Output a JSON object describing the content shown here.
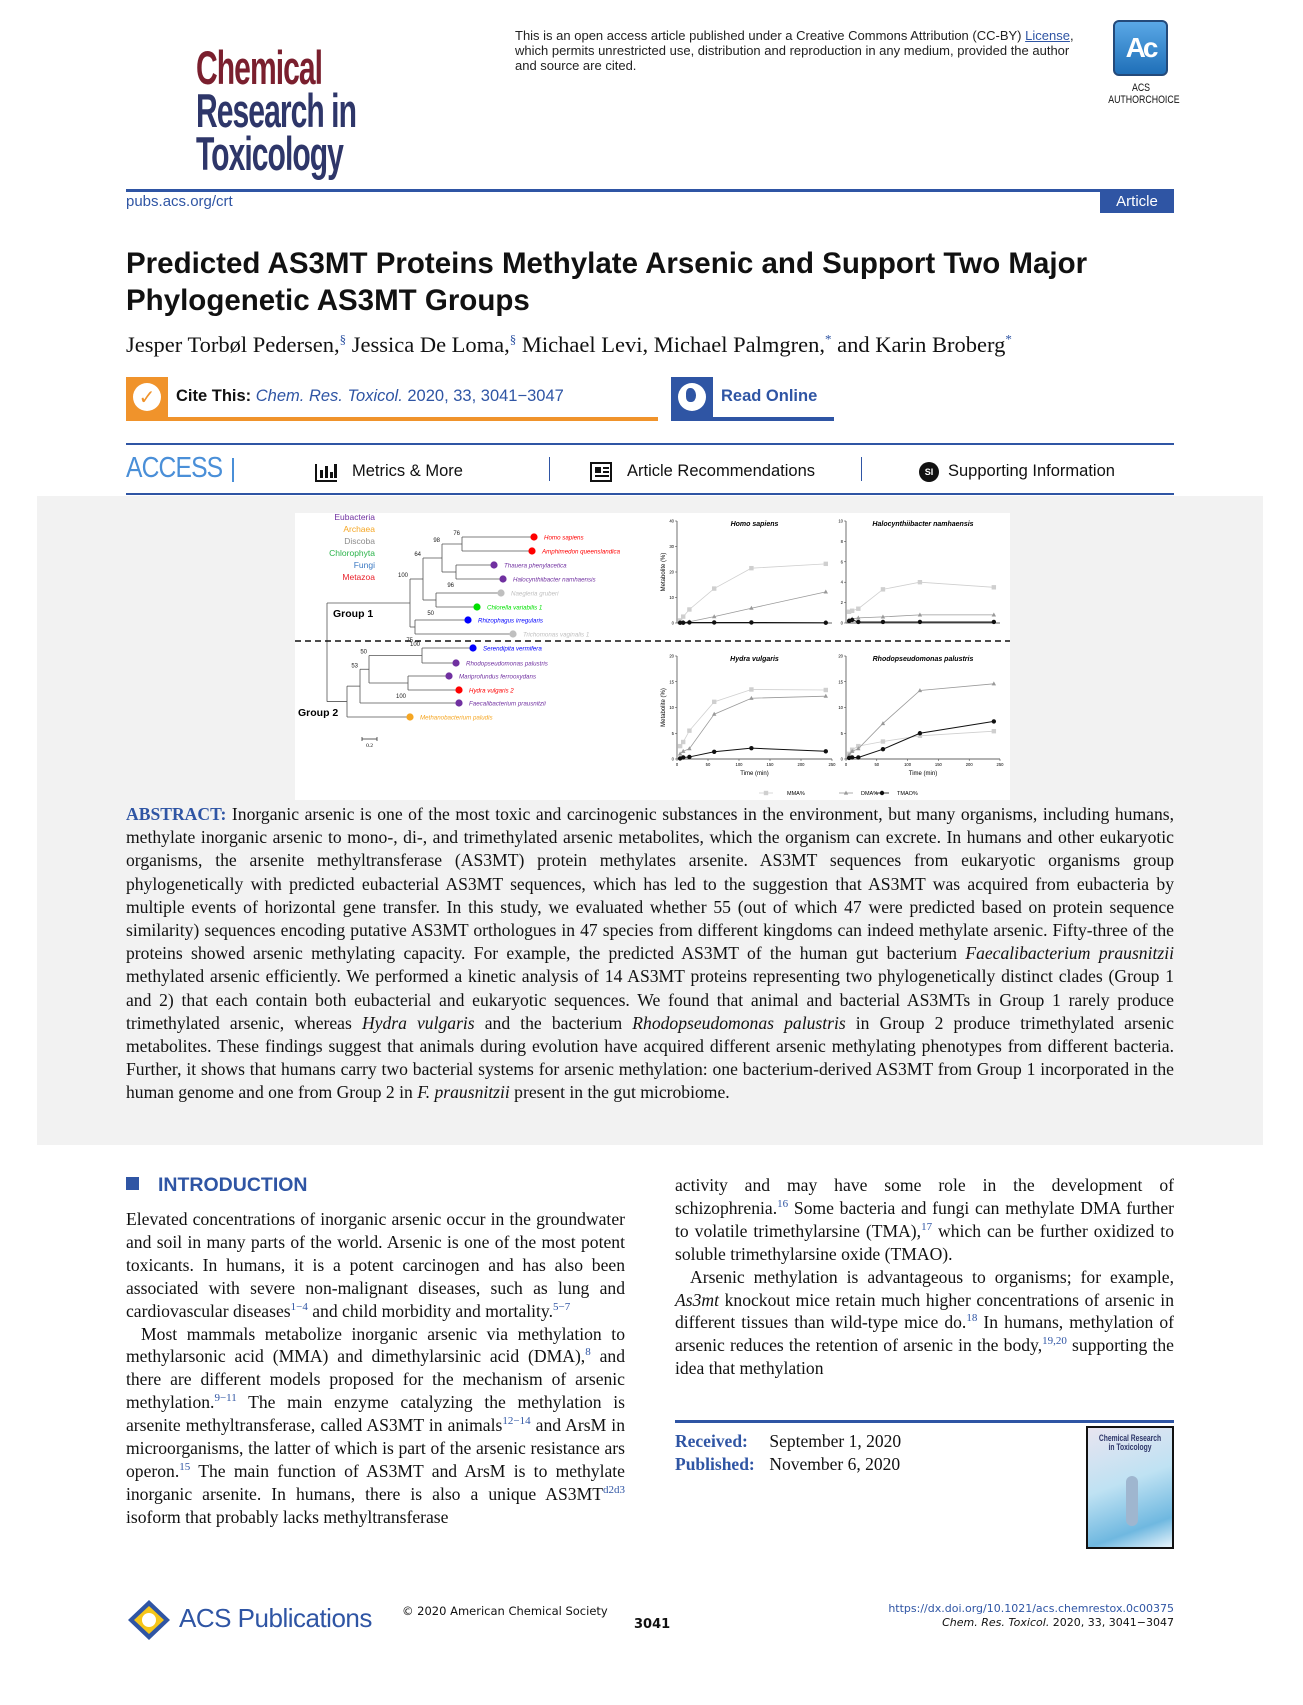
{
  "journal_logo": {
    "line1": "Chemical",
    "line2": "Research in",
    "line3": "Toxicology",
    "colors": {
      "line1": "#7a1f2e",
      "rest": "#2e3669"
    }
  },
  "license": {
    "pre": "This is an open access article published under a Creative Commons Attribution (CC-BY) ",
    "link": "License",
    "post": ", which permits unrestricted use, distribution and reproduction in any medium, provided the author and source are cited."
  },
  "authorchoice": {
    "badge": "Ac",
    "label": "ACS AUTHORCHOICE"
  },
  "header": {
    "url": "pubs.acs.org/crt",
    "type_badge": "Article"
  },
  "title": "Predicted AS3MT Proteins Methylate Arsenic and Support Two Major Phylogenetic AS3MT Groups",
  "authors": [
    {
      "name": "Jesper Torbøl Pedersen,",
      "mark": "§"
    },
    {
      "name": " Jessica De Loma,",
      "mark": "§"
    },
    {
      "name": " Michael Levi, Michael Palmgren,",
      "mark": "*"
    },
    {
      "name": " and Karin Broberg",
      "mark": "*"
    }
  ],
  "cite": {
    "label": "Cite This:",
    "journal": "Chem. Res. Toxicol.",
    "ref": " 2020, 33, 3041−3047",
    "icon": "checkmark-icon"
  },
  "read_online": {
    "label": "Read Online",
    "icon": "globe-icon"
  },
  "access_bar": {
    "access": "ACCESS",
    "metrics": "Metrics & More",
    "recommendations": "Article Recommendations",
    "supporting": "Supporting Information",
    "si_badge": "SI"
  },
  "figure": {
    "tree": {
      "legend": [
        {
          "label": "Eubacteria",
          "color": "#7030a0"
        },
        {
          "label": "Archaea",
          "color": "#f5a623"
        },
        {
          "label": "Discoba",
          "color": "#8c8c8c"
        },
        {
          "label": "Chlorophyta",
          "color": "#2bb34a"
        },
        {
          "label": "Fungi",
          "color": "#3a78c2"
        },
        {
          "label": "Metazoa",
          "color": "#e8202a"
        }
      ],
      "leaves": [
        {
          "name": "Homo sapiens",
          "color": "#ff0000"
        },
        {
          "name": "Amphimedon queenslandica",
          "color": "#ff0000"
        },
        {
          "name": "Thauera phenylacetica",
          "color": "#7030a0"
        },
        {
          "name": "Halocynthiibacter namhaensis",
          "color": "#7030a0"
        },
        {
          "name": "Naegleria gruberi",
          "color": "#bfbfbf"
        },
        {
          "name": "Chlorella variabilis 1",
          "color": "#00e000"
        },
        {
          "name": "Rhizophagus irregularis",
          "color": "#0000ff"
        },
        {
          "name": "Trichomonas vaginalis 1",
          "color": "#bfbfbf"
        },
        {
          "name": "Serendipita vermifera",
          "color": "#0000ff"
        },
        {
          "name": "Rhodopseudomonas palustris",
          "color": "#7030a0"
        },
        {
          "name": "Mariprofundus ferrooxydans",
          "color": "#7030a0"
        },
        {
          "name": "Hydra vulgaris 2",
          "color": "#ff0000"
        },
        {
          "name": "Faecalibacterium prausnitzii",
          "color": "#7030a0"
        },
        {
          "name": "Methanobacterium paludis",
          "color": "#f5a623"
        }
      ],
      "bootstrap": [
        "76",
        "96",
        "98",
        "50",
        "64",
        "75",
        "100",
        "100",
        "100",
        "50",
        "53"
      ],
      "groups": [
        "Group 1",
        "Group 2"
      ],
      "scale_label": "0.2"
    },
    "legend": [
      "MMA%",
      "DMA%",
      "TMAO%"
    ]
  },
  "chart_data": [
    {
      "type": "line",
      "title": "Homo sapiens",
      "xlabel": "",
      "ylabel": "Metabolite (%)",
      "xlim": [
        0,
        250
      ],
      "ylim": [
        0,
        40
      ],
      "xticks": [],
      "yticks": [
        0,
        10,
        20,
        30,
        40
      ],
      "x": [
        5,
        10,
        20,
        60,
        120,
        240
      ],
      "series": [
        {
          "name": "MMA%",
          "values": [
            1.0,
            2.5,
            5.3,
            13.5,
            21.5,
            23.2
          ]
        },
        {
          "name": "DMA%",
          "values": [
            0.1,
            0.3,
            0.5,
            2.5,
            5.8,
            12.2
          ]
        },
        {
          "name": "TMAO%",
          "values": [
            0.1,
            0.1,
            0.2,
            0.2,
            0.2,
            0.1
          ]
        }
      ]
    },
    {
      "type": "line",
      "title": "Halocynthiibacter namhaensis",
      "xlabel": "",
      "ylabel": "",
      "xlim": [
        0,
        250
      ],
      "ylim": [
        0,
        10
      ],
      "xticks": [],
      "yticks": [
        0,
        2,
        4,
        6,
        8,
        10
      ],
      "x": [
        5,
        10,
        20,
        60,
        120,
        240
      ],
      "series": [
        {
          "name": "MMA%",
          "values": [
            1.1,
            1.2,
            1.4,
            3.3,
            4.0,
            3.5
          ]
        },
        {
          "name": "DMA%",
          "values": [
            0.3,
            0.4,
            0.5,
            0.6,
            0.8,
            0.8
          ]
        },
        {
          "name": "TMAO%",
          "values": [
            0.2,
            0.3,
            0.1,
            0.1,
            0.1,
            0.1
          ]
        }
      ]
    },
    {
      "type": "line",
      "title": "Hydra vulgaris",
      "xlabel": "Time (min)",
      "ylabel": "Metabolite (%)",
      "xlim": [
        0,
        250
      ],
      "ylim": [
        0,
        20
      ],
      "xticks": [
        0,
        50,
        100,
        150,
        200,
        250
      ],
      "yticks": [
        0,
        5,
        10,
        15,
        20
      ],
      "x": [
        5,
        10,
        20,
        60,
        120,
        240
      ],
      "series": [
        {
          "name": "MMA%",
          "values": [
            2.5,
            3.3,
            5.5,
            11.1,
            13.5,
            13.4
          ]
        },
        {
          "name": "DMA%",
          "values": [
            1.0,
            1.5,
            2.0,
            8.7,
            11.8,
            12.2
          ]
        },
        {
          "name": "TMAO%",
          "values": [
            0.1,
            0.3,
            0.4,
            1.4,
            2.1,
            1.5
          ]
        }
      ]
    },
    {
      "type": "line",
      "title": "Rhodopseudomonas palustris",
      "xlabel": "Time (min)",
      "ylabel": "",
      "xlim": [
        0,
        250
      ],
      "ylim": [
        0,
        20
      ],
      "xticks": [
        0,
        50,
        100,
        150,
        200,
        250
      ],
      "yticks": [
        0,
        5,
        10,
        15,
        20
      ],
      "x": [
        5,
        10,
        20,
        60,
        120,
        240
      ],
      "series": [
        {
          "name": "MMA%",
          "values": [
            1.0,
            1.8,
            2.5,
            3.4,
            4.5,
            5.4
          ]
        },
        {
          "name": "DMA%",
          "values": [
            0.8,
            1.5,
            2.0,
            6.9,
            13.3,
            14.6
          ]
        },
        {
          "name": "TMAO%",
          "values": [
            0.2,
            0.3,
            0.3,
            1.9,
            5.0,
            7.3
          ]
        }
      ]
    }
  ],
  "abstract": {
    "label": "ABSTRACT:",
    "segments": [
      {
        "t": " Inorganic arsenic is one of the most toxic and carcinogenic substances in the environment, but many organisms, including humans, methylate inorganic arsenic to mono-, di-, and trimethylated arsenic metabolites, which the organism can excrete. In humans and other eukaryotic organisms, the arsenite methyltransferase (AS3MT) protein methylates arsenite. AS3MT sequences from eukaryotic organisms group phylogenetically with predicted eubacterial AS3MT sequences, which has led to the suggestion that AS3MT was acquired from eubacteria by multiple events of horizontal gene transfer. In this study, we evaluated whether 55 (out of which 47 were predicted based on protein sequence similarity) sequences encoding putative AS3MT orthologues in 47 species from different kingdoms can indeed methylate arsenic. Fifty-three of the proteins showed arsenic methylating capacity. For example, the predicted AS3MT of the human gut bacterium "
      },
      {
        "t": "Faecalibacterium prausnitzii",
        "s": "i"
      },
      {
        "t": " methylated arsenic efficiently. We performed a kinetic analysis of 14 AS3MT proteins representing two phylogenetically distinct clades (Group 1 and 2) that each contain both eubacterial and eukaryotic sequences. We found that animal and bacterial AS3MTs in Group 1 rarely produce trimethylated arsenic, whereas "
      },
      {
        "t": "Hydra vulgaris",
        "s": "i"
      },
      {
        "t": " and the bacterium "
      },
      {
        "t": "Rhodopseudomonas palustris",
        "s": "i"
      },
      {
        "t": " in Group 2 produce trimethylated arsenic metabolites. These findings suggest that animals during evolution have acquired different arsenic methylating phenotypes from different bacteria. Further, it shows that humans carry two bacterial systems for arsenic methylation: one bacterium-derived AS3MT from Group 1 incorporated in the human genome and one from Group 2 in "
      },
      {
        "t": "F. prausnitzii",
        "s": "i"
      },
      {
        "t": " present in the gut microbiome."
      }
    ]
  },
  "introduction": {
    "heading": "INTRODUCTION",
    "left": [
      [
        {
          "t": "Elevated concentrations of inorganic arsenic occur in the groundwater and soil in many parts of the world. Arsenic is one of the most potent toxicants. In humans, it is a potent carcinogen and has also been associated with severe non-malignant diseases, such as lung and cardiovascular diseases"
        },
        {
          "t": "1−4",
          "s": "sup"
        },
        {
          "t": " and child morbidity and mortality."
        },
        {
          "t": "5−7",
          "s": "sup"
        }
      ],
      [
        {
          "t": "Most mammals metabolize inorganic arsenic via methylation to methylarsonic acid (MMA) and dimethylarsinic acid (DMA),"
        },
        {
          "t": "8",
          "s": "sup"
        },
        {
          "t": " and there are different models proposed for the mechanism of arsenic methylation."
        },
        {
          "t": "9−11",
          "s": "sup"
        },
        {
          "t": " The main enzyme catalyzing the methylation is arsenite methyltransferase, called AS3MT in animals"
        },
        {
          "t": "12−14",
          "s": "sup"
        },
        {
          "t": " and ArsM in microorganisms, the latter of which is part of the arsenic resistance ars operon."
        },
        {
          "t": "15",
          "s": "sup"
        },
        {
          "t": " The main function of AS3MT and ArsM is to methylate inorganic arsenite. In humans, there is also a unique AS3MT"
        },
        {
          "t": "d2d3",
          "s": "sup"
        },
        {
          "t": " isoform that probably lacks methyltransferase"
        }
      ]
    ],
    "right": [
      [
        {
          "t": "activity and may have some role in the development of schizophrenia."
        },
        {
          "t": "16",
          "s": "sup"
        },
        {
          "t": " Some bacteria and fungi can methylate DMA further to volatile trimethylarsine (TMA),"
        },
        {
          "t": "17",
          "s": "sup"
        },
        {
          "t": " which can be further oxidized to soluble trimethylarsine oxide (TMAO)."
        }
      ],
      [
        {
          "t": "Arsenic methylation is advantageous to organisms; for example, "
        },
        {
          "t": "As3mt",
          "s": "i"
        },
        {
          "t": " knockout mice retain much higher concentrations of arsenic in different tissues than wild-type mice do."
        },
        {
          "t": "18",
          "s": "sup"
        },
        {
          "t": " In humans, methylation of arsenic reduces the retention of arsenic in the body,"
        },
        {
          "t": "19,20",
          "s": "sup"
        },
        {
          "t": " supporting the idea that methylation"
        }
      ]
    ]
  },
  "dates": {
    "received_label": "Received:",
    "received": "September 1, 2020",
    "published_label": "Published:",
    "published": "November 6, 2020"
  },
  "cover": {
    "title": "Chemical Research in Toxicology"
  },
  "footer": {
    "publisher": "ACS Publications",
    "copyright": "© 2020 American Chemical Society",
    "page": "3041",
    "doi": "https://dx.doi.org/10.1021/acs.chemrestox.0c00375",
    "citation_journal": "Chem. Res. Toxicol.",
    "citation_ref": " 2020, 33, 3041−3047"
  },
  "colors": {
    "acs_blue": "#2f55a4",
    "cite_orange": "#f0932b",
    "access_blue": "#4a8fd8",
    "abstract_bg": "#f2f2f2"
  }
}
